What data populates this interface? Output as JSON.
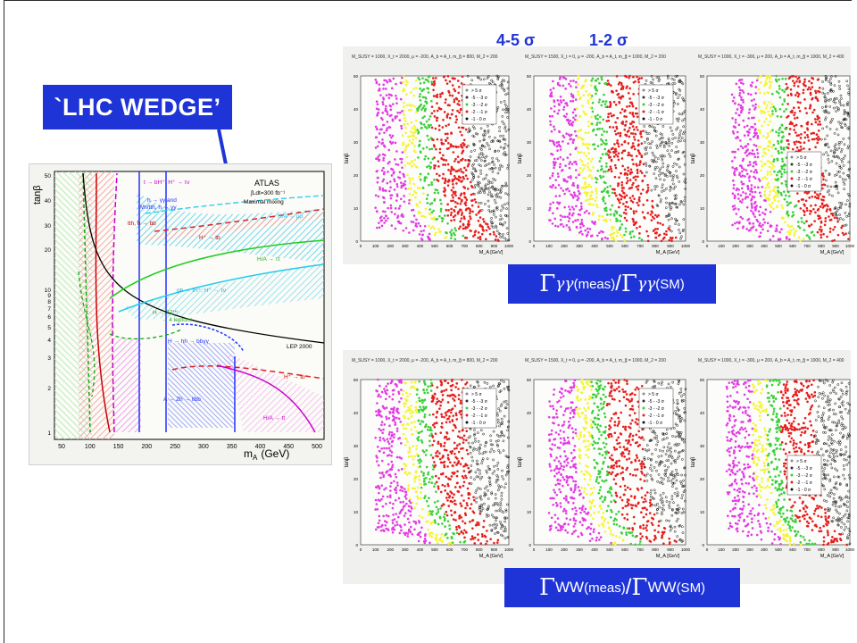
{
  "title_box": "`LHC WEDGE’",
  "annotations": {
    "sigma45": "4-5 σ",
    "sigma12": "1-2 σ"
  },
  "ratio_top": {
    "gamma": "Γ",
    "sub": "γγ",
    "sup_meas": "(meas)",
    "slash": "/ ",
    "sup_sm": "(SM)"
  },
  "ratio_bottom": {
    "gamma": "Γ",
    "sub": "WW",
    "sup_meas": "(meas)",
    "slash": "/ ",
    "sup_sm": "(SM)"
  },
  "left_plot": {
    "experiment": "ATLAS",
    "lumi": "∫Ldt=300 fb⁻¹",
    "scenario": "Maximal mixing",
    "ylabel": "tanβ",
    "xlabel": "m",
    "xlabel_sub": "A",
    "xunit": "(GeV)",
    "x_ticks": [
      "50",
      "100",
      "150",
      "200",
      "250",
      "300",
      "350",
      "400",
      "450",
      "500"
    ],
    "y_ticks": [
      "1",
      "2",
      "3",
      "4",
      "5",
      "6",
      "7",
      "8",
      "9",
      "10",
      "20",
      "30",
      "40",
      "50"
    ],
    "labels": {
      "l1": "t → bH⁺, H⁺ → τν",
      "l2": "h → γγ and",
      "l3": "Wh/tth, h → γγ",
      "l4": "tth, h → bb",
      "l5": "H/A → μμ",
      "l6": "H⁺ → tb",
      "l7": "H/A → ττ",
      "l8": "gb → tH⁺, H⁺ → τν",
      "l9": "H → ZZ⁽*⁾",
      "l10": "→ 4 leptons",
      "l11": "H → hh → bbγγ",
      "l12": "LEP 2000",
      "l13": "H⁺ → tb",
      "l14": "A → Zh → llbb",
      "l15": "H/A → tt"
    }
  },
  "scan_panels": {
    "headers_top": [
      "M_SUSY = 1000, X_t = 2000, μ = -200, A_b = A_t, m_g̃ = 800, M_2 = 200",
      "M_SUSY = 1500, X_t = 0, μ = -200, A_b = A_t, m_g̃ = 1000, M_2 = 200",
      "M_SUSY = 1000, X_t = -300, μ = 200, A_b = A_t, m_g̃ = 1000, M_2 = 400"
    ],
    "headers_bottom": [
      "M_SUSY = 1000, X_t = 2000, μ = -200, A_b = A_t, m_g̃ = 800, M_2 = 200",
      "M_SUSY = 1500, X_t = 0, μ = -200, A_b = A_t, m_g̃ = 1000, M_2 = 200",
      "M_SUSY = 1000, X_t = -300, μ = 200, A_b = A_t, m_g̃ = 1000, M_2 = 400"
    ],
    "ylabel": "tanβ",
    "xlabel": "M_A [GeV]",
    "x_ticks": [
      "0",
      "100",
      "200",
      "300",
      "400",
      "500",
      "600",
      "700",
      "800",
      "900",
      "1000"
    ],
    "y_ticks": [
      "0",
      "10",
      "20",
      "30",
      "40",
      "50"
    ],
    "legend": [
      {
        "label": "> 5 σ",
        "color": "#8a8a8a"
      },
      {
        "label": "-5 - -3 σ",
        "color": "#333333"
      },
      {
        "label": "-3 - -2 σ",
        "color": "#3ad03a"
      },
      {
        "label": "-2 - -1 σ",
        "color": "#ee1c1c"
      },
      {
        "label": "-1 - 0 σ",
        "color": "#111111"
      }
    ],
    "band_colors": {
      "magenta": "#e33be3",
      "yellow": "#f5f530",
      "green": "#3ad03a",
      "red": "#e61e1e",
      "black": "#222222"
    }
  }
}
